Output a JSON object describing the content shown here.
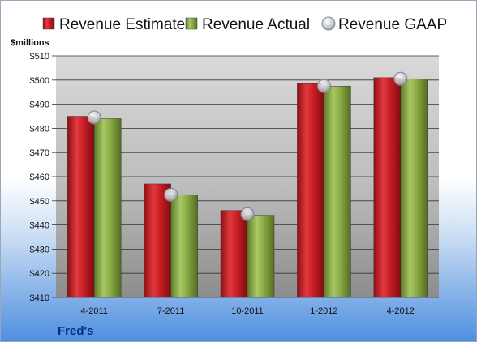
{
  "chart_data": {
    "type": "bar",
    "company": "Fred's",
    "unit_label": "$millions",
    "categories": [
      "4-2011",
      "7-2011",
      "10-2011",
      "1-2012",
      "4-2012"
    ],
    "series": [
      {
        "name": "Revenue Estimate",
        "kind": "bar",
        "color": "#cc1f26",
        "values": [
          485,
          457,
          446,
          498.5,
          501
        ]
      },
      {
        "name": "Revenue Actual",
        "kind": "bar",
        "color": "#8fb04a",
        "values": [
          484,
          452.5,
          444,
          497.5,
          500.5
        ]
      },
      {
        "name": "Revenue GAAP",
        "kind": "marker",
        "color": "#b8bcc4",
        "values": [
          484.5,
          452.5,
          444.5,
          497.5,
          500.5
        ]
      }
    ],
    "ylim": [
      410,
      510
    ],
    "yticks": [
      410,
      420,
      430,
      440,
      450,
      460,
      470,
      480,
      490,
      500,
      510
    ],
    "ytick_labels": [
      "$410",
      "$420",
      "$430",
      "$440",
      "$450",
      "$460",
      "$470",
      "$480",
      "$490",
      "$500",
      "$510"
    ],
    "legend_position": "top",
    "grid": true
  }
}
